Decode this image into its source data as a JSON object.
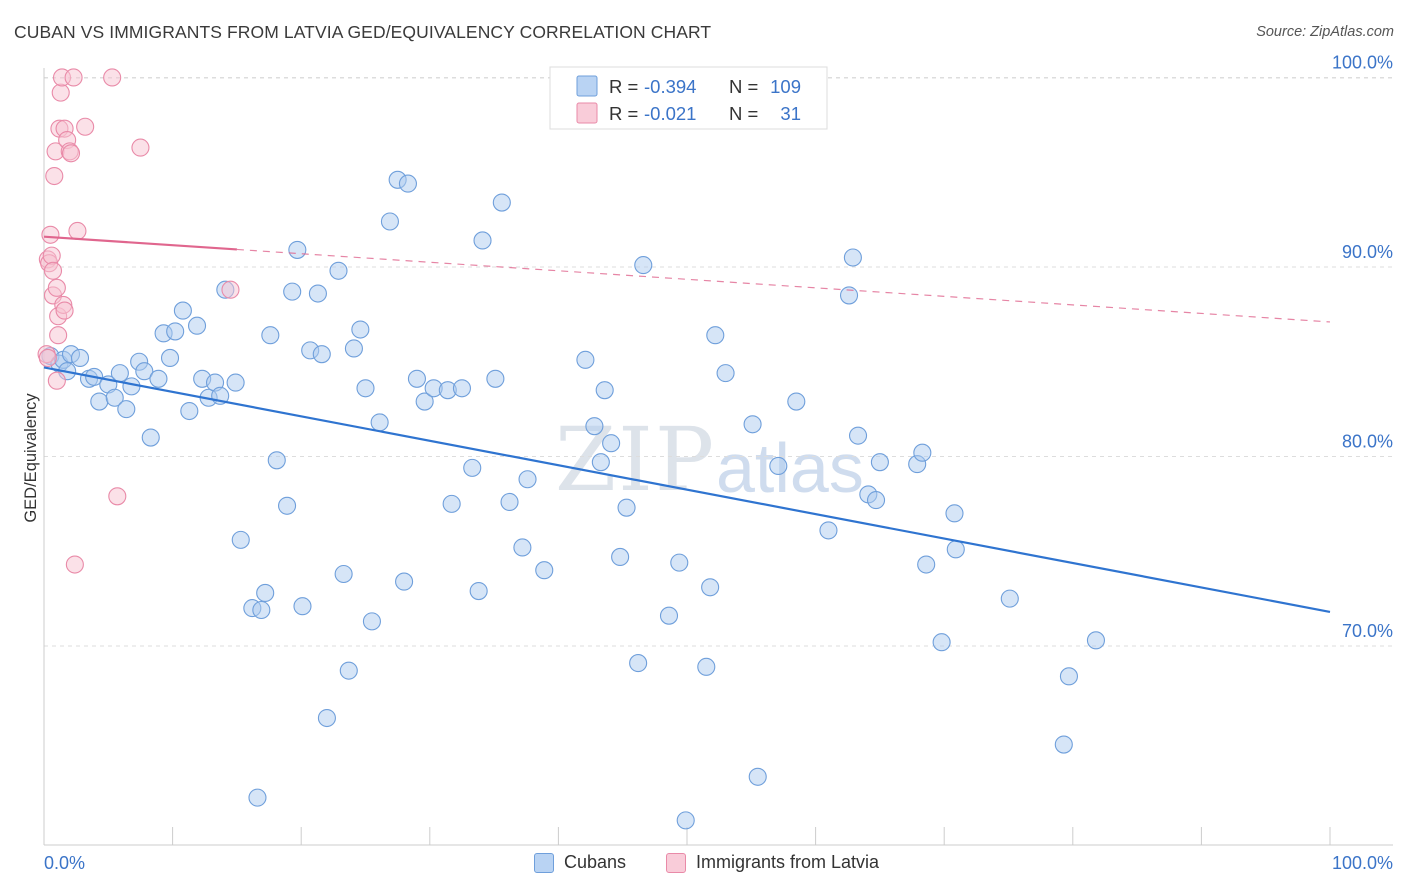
{
  "title": "CUBAN VS IMMIGRANTS FROM LATVIA GED/EQUIVALENCY CORRELATION CHART",
  "source": "Source: ZipAtlas.com",
  "colors": {
    "blue_fill": "#aecbf0",
    "blue_stroke": "#6f9fdb",
    "blue_line": "#2f74d0",
    "pink_fill": "#f7c3d2",
    "pink_stroke": "#e98aa8",
    "pink_line": "#e0668e",
    "accent_text": "#3b74c8",
    "grid": "#dddddd"
  },
  "legend_top": [
    {
      "r_label": "R =",
      "r_value": "-0.394",
      "n_label": "N =",
      "n_value": "109",
      "series": "cubans"
    },
    {
      "r_label": "R =",
      "r_value": "-0.021",
      "n_label": "N =",
      "n_value": "31",
      "series": "latvia"
    }
  ],
  "legend_bottom": [
    {
      "label": "Cubans",
      "series": "cubans"
    },
    {
      "label": "Immigrants from Latvia",
      "series": "latvia"
    }
  ],
  "watermark": {
    "zip": "ZIP",
    "atlas": "atlas"
  },
  "chart_data": {
    "type": "scatter",
    "ylabel": "GED/Equivalency",
    "xlabel": "",
    "xlim": [
      0,
      100
    ],
    "ylim": [
      59.5,
      100.5
    ],
    "x_tick_labels": [
      "0.0%",
      "100.0%"
    ],
    "y_ticks": [
      70,
      80,
      90,
      100
    ],
    "y_tick_labels": [
      "70.0%",
      "80.0%",
      "90.0%",
      "100.0%"
    ],
    "grid": true,
    "legend_position": "top-center",
    "series": [
      {
        "name": "Cubans",
        "key": "cubans",
        "trend": {
          "x0": 0,
          "y0": 84.7,
          "x1": 100,
          "y1": 71.8,
          "dashed_from": null
        },
        "points": [
          [
            0.5,
            85.3
          ],
          [
            1.2,
            84.9
          ],
          [
            1.5,
            85.1
          ],
          [
            1.8,
            84.5
          ],
          [
            2.1,
            85.4
          ],
          [
            2.8,
            85.2
          ],
          [
            3.5,
            84.1
          ],
          [
            3.9,
            84.2
          ],
          [
            4.3,
            82.9
          ],
          [
            5.0,
            83.8
          ],
          [
            5.5,
            83.1
          ],
          [
            5.9,
            84.4
          ],
          [
            6.4,
            82.5
          ],
          [
            6.8,
            83.7
          ],
          [
            7.4,
            85.0
          ],
          [
            7.8,
            84.5
          ],
          [
            8.3,
            81.0
          ],
          [
            8.9,
            84.1
          ],
          [
            9.3,
            86.5
          ],
          [
            9.8,
            85.2
          ],
          [
            10.2,
            86.6
          ],
          [
            10.8,
            87.7
          ],
          [
            11.3,
            82.4
          ],
          [
            11.9,
            86.9
          ],
          [
            12.3,
            84.1
          ],
          [
            12.8,
            83.1
          ],
          [
            13.3,
            83.9
          ],
          [
            13.7,
            83.2
          ],
          [
            14.1,
            88.8
          ],
          [
            14.9,
            83.9
          ],
          [
            15.3,
            75.6
          ],
          [
            16.2,
            72.0
          ],
          [
            16.6,
            62.0
          ],
          [
            16.9,
            71.9
          ],
          [
            17.2,
            72.8
          ],
          [
            17.6,
            86.4
          ],
          [
            18.1,
            79.8
          ],
          [
            18.9,
            77.4
          ],
          [
            19.3,
            88.7
          ],
          [
            19.7,
            90.9
          ],
          [
            20.1,
            72.1
          ],
          [
            20.7,
            85.6
          ],
          [
            21.3,
            88.6
          ],
          [
            21.6,
            85.4
          ],
          [
            22.0,
            66.2
          ],
          [
            22.9,
            89.8
          ],
          [
            23.3,
            73.8
          ],
          [
            23.7,
            68.7
          ],
          [
            24.1,
            85.7
          ],
          [
            24.6,
            86.7
          ],
          [
            25.0,
            83.6
          ],
          [
            25.5,
            71.3
          ],
          [
            26.1,
            81.8
          ],
          [
            26.9,
            92.4
          ],
          [
            27.5,
            94.6
          ],
          [
            28.0,
            73.4
          ],
          [
            28.3,
            94.4
          ],
          [
            29.0,
            84.1
          ],
          [
            29.6,
            82.9
          ],
          [
            30.3,
            83.6
          ],
          [
            31.4,
            83.5
          ],
          [
            31.7,
            77.5
          ],
          [
            32.5,
            83.6
          ],
          [
            33.3,
            79.4
          ],
          [
            33.8,
            72.9
          ],
          [
            34.1,
            91.4
          ],
          [
            35.1,
            84.1
          ],
          [
            35.6,
            93.4
          ],
          [
            36.2,
            77.6
          ],
          [
            37.2,
            75.2
          ],
          [
            37.6,
            78.8
          ],
          [
            38.9,
            74.0
          ],
          [
            42.1,
            85.1
          ],
          [
            42.8,
            81.6
          ],
          [
            43.3,
            79.7
          ],
          [
            43.6,
            83.5
          ],
          [
            44.1,
            80.7
          ],
          [
            44.8,
            74.7
          ],
          [
            45.3,
            77.3
          ],
          [
            46.2,
            69.1
          ],
          [
            46.6,
            90.1
          ],
          [
            48.6,
            71.6
          ],
          [
            49.4,
            74.4
          ],
          [
            49.9,
            60.8
          ],
          [
            51.5,
            68.9
          ],
          [
            51.8,
            73.1
          ],
          [
            52.2,
            86.4
          ],
          [
            53.0,
            84.4
          ],
          [
            55.1,
            81.7
          ],
          [
            55.5,
            63.1
          ],
          [
            57.1,
            79.5
          ],
          [
            58.5,
            82.9
          ],
          [
            61.0,
            76.1
          ],
          [
            62.6,
            88.5
          ],
          [
            62.9,
            90.5
          ],
          [
            63.3,
            81.1
          ],
          [
            64.1,
            78.0
          ],
          [
            64.7,
            77.7
          ],
          [
            65.0,
            79.7
          ],
          [
            67.9,
            79.6
          ],
          [
            68.3,
            80.2
          ],
          [
            68.6,
            74.3
          ],
          [
            69.8,
            70.2
          ],
          [
            70.8,
            77.0
          ],
          [
            70.9,
            75.1
          ],
          [
            75.1,
            72.5
          ],
          [
            79.3,
            64.8
          ],
          [
            79.7,
            68.4
          ],
          [
            81.8,
            70.3
          ]
        ]
      },
      {
        "name": "Immigrants from Latvia",
        "key": "latvia",
        "trend": {
          "x0": 0,
          "y0": 91.6,
          "x1": 100,
          "y1": 87.1,
          "dashed_from": 15
        },
        "points": [
          [
            0.2,
            85.4
          ],
          [
            0.3,
            90.4
          ],
          [
            0.4,
            90.2
          ],
          [
            0.5,
            91.7
          ],
          [
            0.6,
            90.6
          ],
          [
            0.7,
            89.8
          ],
          [
            0.7,
            88.5
          ],
          [
            0.8,
            94.8
          ],
          [
            0.9,
            96.1
          ],
          [
            1.0,
            88.9
          ],
          [
            1.0,
            84.0
          ],
          [
            1.1,
            86.4
          ],
          [
            1.1,
            87.4
          ],
          [
            1.2,
            97.3
          ],
          [
            1.3,
            99.2
          ],
          [
            1.4,
            100.0
          ],
          [
            1.5,
            88.0
          ],
          [
            1.6,
            97.3
          ],
          [
            1.6,
            87.7
          ],
          [
            1.8,
            96.7
          ],
          [
            2.0,
            96.1
          ],
          [
            2.1,
            96.0
          ],
          [
            2.3,
            100.0
          ],
          [
            2.4,
            74.3
          ],
          [
            2.6,
            91.9
          ],
          [
            3.2,
            97.4
          ],
          [
            5.3,
            100.0
          ],
          [
            5.7,
            77.9
          ],
          [
            7.5,
            96.3
          ],
          [
            14.5,
            88.8
          ],
          [
            0.3,
            85.2
          ]
        ]
      }
    ]
  }
}
